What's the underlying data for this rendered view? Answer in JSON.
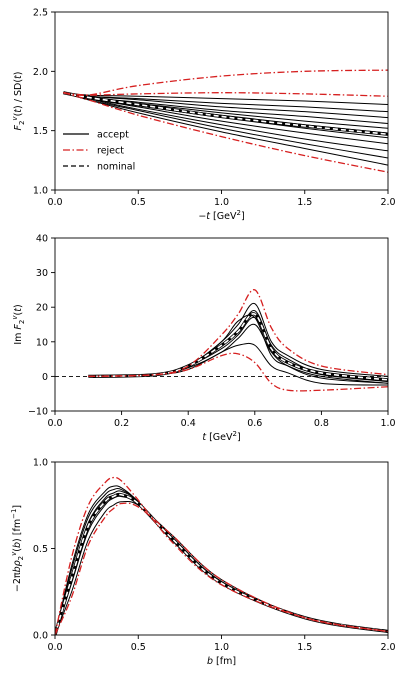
{
  "chart_data": [
    {
      "type": "line",
      "ylabel": "F_2^v(t) / SD(t)",
      "xlabel": "−t [GeV²]",
      "xlim": [
        0,
        2
      ],
      "ylim": [
        1,
        2.5
      ],
      "xticks": [
        "0.0",
        "0.5",
        "1.0",
        "1.5",
        "2.0"
      ],
      "yticks": [
        "1.0",
        "1.5",
        "2.0",
        "2.5"
      ],
      "legend": {
        "position": "lower-left",
        "entries": [
          {
            "label": "accept",
            "style": "solid",
            "color": "#000000"
          },
          {
            "label": "reject",
            "style": "dashdot",
            "color": "#d62020"
          },
          {
            "label": "nominal",
            "style": "dashed",
            "color": "#000000"
          }
        ]
      },
      "series": [
        {
          "style": "accept",
          "x": [
            0.05,
            0.2,
            0.5,
            1.0,
            1.5,
            2.0
          ],
          "y": [
            1.82,
            1.8,
            1.79,
            1.77,
            1.75,
            1.72
          ]
        },
        {
          "style": "accept",
          "x": [
            0.05,
            0.2,
            0.5,
            1.0,
            1.5,
            2.0
          ],
          "y": [
            1.82,
            1.79,
            1.77,
            1.73,
            1.7,
            1.66
          ]
        },
        {
          "style": "accept",
          "x": [
            0.05,
            0.2,
            0.5,
            1.0,
            1.5,
            2.0
          ],
          "y": [
            1.82,
            1.79,
            1.76,
            1.7,
            1.66,
            1.61
          ]
        },
        {
          "style": "accept",
          "x": [
            0.05,
            0.2,
            0.5,
            1.0,
            1.5,
            2.0
          ],
          "y": [
            1.82,
            1.78,
            1.74,
            1.67,
            1.62,
            1.56
          ]
        },
        {
          "style": "accept",
          "x": [
            0.05,
            0.2,
            0.5,
            1.0,
            1.5,
            2.0
          ],
          "y": [
            1.82,
            1.78,
            1.73,
            1.65,
            1.58,
            1.52
          ]
        },
        {
          "style": "accept",
          "x": [
            0.05,
            0.2,
            0.5,
            1.0,
            1.5,
            2.0
          ],
          "y": [
            1.82,
            1.78,
            1.72,
            1.63,
            1.55,
            1.48
          ]
        },
        {
          "style": "accept",
          "x": [
            0.05,
            0.2,
            0.5,
            1.0,
            1.5,
            2.0
          ],
          "y": [
            1.82,
            1.77,
            1.71,
            1.61,
            1.52,
            1.44
          ]
        },
        {
          "style": "accept",
          "x": [
            0.05,
            0.2,
            0.5,
            1.0,
            1.5,
            2.0
          ],
          "y": [
            1.82,
            1.77,
            1.7,
            1.58,
            1.48,
            1.39
          ]
        },
        {
          "style": "accept",
          "x": [
            0.05,
            0.2,
            0.5,
            1.0,
            1.5,
            2.0
          ],
          "y": [
            1.82,
            1.77,
            1.68,
            1.55,
            1.43,
            1.33
          ]
        },
        {
          "style": "accept",
          "x": [
            0.05,
            0.2,
            0.5,
            1.0,
            1.5,
            2.0
          ],
          "y": [
            1.82,
            1.76,
            1.67,
            1.52,
            1.39,
            1.27
          ]
        },
        {
          "style": "accept",
          "x": [
            0.05,
            0.2,
            0.5,
            1.0,
            1.5,
            2.0
          ],
          "y": [
            1.82,
            1.76,
            1.65,
            1.49,
            1.35,
            1.21
          ]
        },
        {
          "style": "reject",
          "x": [
            0.05,
            0.2,
            0.5,
            1.0,
            1.5,
            2.0
          ],
          "y": [
            1.82,
            1.8,
            1.88,
            1.96,
            2.0,
            2.01
          ]
        },
        {
          "style": "reject",
          "x": [
            0.05,
            0.2,
            0.5,
            1.0,
            1.5,
            2.0
          ],
          "y": [
            1.82,
            1.8,
            1.81,
            1.82,
            1.81,
            1.79
          ]
        },
        {
          "style": "reject",
          "x": [
            0.05,
            0.2,
            0.5,
            1.0,
            1.5,
            2.0
          ],
          "y": [
            1.82,
            1.76,
            1.63,
            1.45,
            1.29,
            1.15
          ]
        },
        {
          "style": "nominal",
          "x": [
            0.05,
            0.2,
            0.5,
            1.0,
            1.5,
            2.0
          ],
          "y": [
            1.82,
            1.78,
            1.72,
            1.62,
            1.54,
            1.47
          ]
        }
      ]
    },
    {
      "type": "line",
      "ylabel": "Im F_2^v(t)",
      "xlabel": "t [GeV²]",
      "xlim": [
        0,
        1
      ],
      "ylim": [
        -10,
        40
      ],
      "xticks": [
        "0.0",
        "0.2",
        "0.4",
        "0.6",
        "0.8",
        "1.0"
      ],
      "yticks": [
        "−10",
        "0",
        "10",
        "20",
        "30",
        "40"
      ],
      "reference_line": {
        "y": 0,
        "style": "dashed"
      },
      "series": [
        {
          "style": "accept",
          "x": [
            0.1,
            0.3,
            0.4,
            0.5,
            0.55,
            0.6,
            0.65,
            0.7,
            0.8,
            1.0
          ],
          "y": [
            0,
            0.5,
            3,
            10,
            15,
            21,
            10,
            6,
            2,
            0
          ]
        },
        {
          "style": "accept",
          "x": [
            0.1,
            0.3,
            0.4,
            0.5,
            0.55,
            0.6,
            0.65,
            0.7,
            0.8,
            1.0
          ],
          "y": [
            0,
            0.5,
            3,
            9,
            13,
            19,
            9,
            5,
            1,
            -1
          ]
        },
        {
          "style": "accept",
          "x": [
            0.1,
            0.3,
            0.4,
            0.5,
            0.55,
            0.6,
            0.65,
            0.7,
            0.8,
            1.0
          ],
          "y": [
            0,
            0.5,
            3,
            8,
            12,
            17,
            8,
            4,
            0.5,
            -1.5
          ]
        },
        {
          "style": "accept",
          "x": [
            0.1,
            0.3,
            0.4,
            0.5,
            0.55,
            0.6,
            0.65,
            0.7,
            0.8,
            1.0
          ],
          "y": [
            0,
            0.5,
            3,
            10,
            16,
            17,
            6,
            3,
            0,
            -2
          ]
        },
        {
          "style": "accept",
          "x": [
            0.1,
            0.3,
            0.4,
            0.5,
            0.55,
            0.6,
            0.65,
            0.7,
            0.8,
            1.0
          ],
          "y": [
            0,
            0.5,
            2.5,
            7,
            11,
            15,
            7,
            3,
            -0.5,
            -2
          ]
        },
        {
          "style": "accept",
          "x": [
            0.1,
            0.3,
            0.4,
            0.5,
            0.55,
            0.6,
            0.65,
            0.7,
            0.8,
            1.0
          ],
          "y": [
            0,
            0.5,
            2,
            7,
            9,
            9,
            3,
            1,
            -2,
            -2.5
          ]
        },
        {
          "style": "reject",
          "x": [
            0.1,
            0.3,
            0.4,
            0.5,
            0.55,
            0.6,
            0.65,
            0.7,
            0.8,
            1.0
          ],
          "y": [
            0,
            0.5,
            3,
            12,
            18,
            25,
            14,
            8,
            3,
            0.5
          ]
        },
        {
          "style": "reject",
          "x": [
            0.1,
            0.3,
            0.4,
            0.5,
            0.55,
            0.6,
            0.65,
            0.7,
            0.8,
            1.0
          ],
          "y": [
            0,
            0.5,
            2,
            6,
            6.5,
            4,
            -2,
            -4,
            -4,
            -3
          ]
        },
        {
          "style": "nominal",
          "x": [
            0.1,
            0.3,
            0.4,
            0.5,
            0.55,
            0.6,
            0.65,
            0.7,
            0.8,
            1.0
          ],
          "y": [
            0,
            0.5,
            3,
            9,
            13,
            18,
            8,
            4,
            1,
            -1
          ]
        }
      ]
    },
    {
      "type": "line",
      "ylabel": "−2πbρ_2^v(b) [fm⁻¹]",
      "xlabel": "b [fm]",
      "xlim": [
        0,
        2
      ],
      "ylim": [
        0,
        1
      ],
      "xticks": [
        "0.0",
        "0.5",
        "1.0",
        "1.5",
        "2.0"
      ],
      "yticks": [
        "0.0",
        "0.5",
        "1.0"
      ],
      "series": [
        {
          "style": "accept",
          "x": [
            0,
            0.1,
            0.2,
            0.3,
            0.35,
            0.4,
            0.5,
            0.7,
            1.0,
            1.5,
            2.0
          ],
          "y": [
            0,
            0.4,
            0.7,
            0.83,
            0.86,
            0.85,
            0.77,
            0.55,
            0.3,
            0.1,
            0.02
          ]
        },
        {
          "style": "accept",
          "x": [
            0,
            0.1,
            0.2,
            0.3,
            0.35,
            0.4,
            0.5,
            0.7,
            1.0,
            1.5,
            2.0
          ],
          "y": [
            0,
            0.35,
            0.65,
            0.79,
            0.82,
            0.83,
            0.77,
            0.56,
            0.3,
            0.1,
            0.02
          ]
        },
        {
          "style": "accept",
          "x": [
            0,
            0.1,
            0.2,
            0.3,
            0.35,
            0.4,
            0.5,
            0.7,
            1.0,
            1.5,
            2.0
          ],
          "y": [
            0,
            0.3,
            0.6,
            0.75,
            0.79,
            0.8,
            0.76,
            0.57,
            0.31,
            0.1,
            0.02
          ]
        },
        {
          "style": "accept",
          "x": [
            0,
            0.1,
            0.2,
            0.3,
            0.35,
            0.4,
            0.5,
            0.7,
            1.0,
            1.5,
            2.0
          ],
          "y": [
            0,
            0.25,
            0.55,
            0.71,
            0.75,
            0.77,
            0.75,
            0.58,
            0.32,
            0.1,
            0.02
          ]
        },
        {
          "style": "accept",
          "x": [
            0,
            0.1,
            0.2,
            0.3,
            0.35,
            0.4,
            0.5,
            0.7,
            1.0,
            1.5,
            2.0
          ],
          "y": [
            0,
            0.38,
            0.68,
            0.81,
            0.84,
            0.84,
            0.77,
            0.55,
            0.3,
            0.1,
            0.02
          ]
        },
        {
          "style": "reject",
          "x": [
            0,
            0.1,
            0.2,
            0.3,
            0.35,
            0.4,
            0.5,
            0.7,
            1.0,
            1.5,
            2.0
          ],
          "y": [
            0,
            0.45,
            0.75,
            0.88,
            0.91,
            0.89,
            0.78,
            0.54,
            0.29,
            0.1,
            0.02
          ]
        },
        {
          "style": "reject",
          "x": [
            0,
            0.1,
            0.2,
            0.3,
            0.35,
            0.4,
            0.5,
            0.7,
            1.0,
            1.5,
            2.0
          ],
          "y": [
            0,
            0.22,
            0.52,
            0.68,
            0.73,
            0.76,
            0.74,
            0.58,
            0.32,
            0.1,
            0.02
          ]
        },
        {
          "style": "nominal",
          "x": [
            0,
            0.1,
            0.2,
            0.3,
            0.35,
            0.4,
            0.5,
            0.7,
            1.0,
            1.5,
            2.0
          ],
          "y": [
            0,
            0.33,
            0.63,
            0.77,
            0.8,
            0.81,
            0.76,
            0.56,
            0.3,
            0.1,
            0.02
          ]
        }
      ]
    }
  ],
  "colors": {
    "accept": "#000000",
    "reject": "#d62020",
    "nominal": "#000000",
    "nominal_halo": "#ffffff"
  }
}
